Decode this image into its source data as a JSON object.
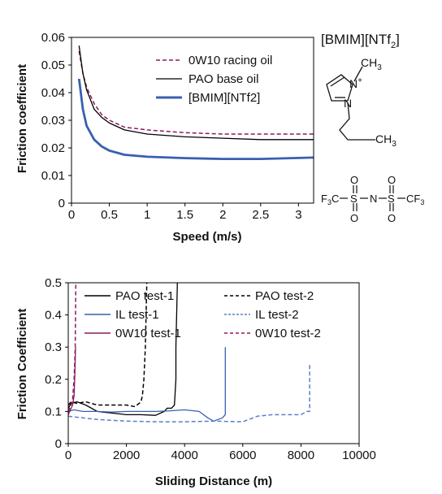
{
  "colors": {
    "axis": "#000000",
    "black": "#000000",
    "blue": "#3a5fb0",
    "purple": "#8b1a5e",
    "light_blue": "#5a7fc8"
  },
  "chart_data": [
    {
      "type": "line",
      "title": "",
      "xlabel": "Speed (m/s)",
      "ylabel": "Friction coefficient",
      "xlim": [
        0,
        3.2
      ],
      "ylim": [
        0,
        0.06
      ],
      "xticks": [
        "0",
        "0.5",
        "1",
        "1.5",
        "2",
        "2.5",
        "3"
      ],
      "yticks": [
        "0",
        "0.01",
        "0.02",
        "0.03",
        "0.04",
        "0.05",
        "0.06"
      ],
      "grid": false,
      "legend": "top-right",
      "series": [
        {
          "name": "0W10 racing oil",
          "style": "dashed",
          "color": "#8b1a5e",
          "x": [
            0.1,
            0.15,
            0.2,
            0.3,
            0.4,
            0.5,
            0.7,
            1.0,
            1.5,
            2.0,
            2.5,
            3.2
          ],
          "y": [
            0.055,
            0.047,
            0.042,
            0.036,
            0.032,
            0.03,
            0.0275,
            0.0265,
            0.0255,
            0.025,
            0.025,
            0.025
          ]
        },
        {
          "name": "PAO base oil",
          "style": "solid",
          "color": "#000000",
          "x": [
            0.1,
            0.15,
            0.2,
            0.3,
            0.4,
            0.5,
            0.7,
            1.0,
            1.5,
            2.0,
            2.5,
            3.2
          ],
          "y": [
            0.057,
            0.047,
            0.041,
            0.034,
            0.031,
            0.029,
            0.0265,
            0.025,
            0.024,
            0.0235,
            0.023,
            0.023
          ]
        },
        {
          "name": "[BMIM][NTf2]",
          "style": "solid-thick",
          "color": "#3a5fb0",
          "x": [
            0.1,
            0.15,
            0.2,
            0.3,
            0.4,
            0.5,
            0.7,
            1.0,
            1.5,
            2.0,
            2.5,
            3.2
          ],
          "y": [
            0.045,
            0.034,
            0.028,
            0.023,
            0.0205,
            0.019,
            0.0175,
            0.0168,
            0.0163,
            0.016,
            0.016,
            0.0165
          ]
        }
      ]
    },
    {
      "type": "line",
      "title": "",
      "xlabel": "Sliding Distance (m)",
      "ylabel": "Friction Coefficient",
      "xlim": [
        0,
        10000
      ],
      "ylim": [
        0,
        0.5
      ],
      "xticks": [
        "0",
        "2000",
        "4000",
        "6000",
        "8000",
        "10000"
      ],
      "yticks": [
        "0",
        "0.1",
        "0.2",
        "0.3",
        "0.4",
        "0.5"
      ],
      "grid": false,
      "legend": "top",
      "series": [
        {
          "name": "PAO test-1",
          "style": "solid",
          "color": "#000000",
          "x": [
            0,
            100,
            300,
            600,
            1000,
            1500,
            2000,
            2500,
            3000,
            3300,
            3400,
            3550,
            3650,
            3700,
            3700,
            3750
          ],
          "y": [
            0.11,
            0.125,
            0.13,
            0.12,
            0.1,
            0.095,
            0.09,
            0.09,
            0.088,
            0.1,
            0.11,
            0.11,
            0.12,
            0.2,
            0.3,
            0.5
          ]
        },
        {
          "name": "PAO test-2",
          "style": "dashed",
          "color": "#000000",
          "x": [
            0,
            100,
            300,
            600,
            1000,
            1500,
            2000,
            2300,
            2500,
            2550,
            2600,
            2650,
            2700
          ],
          "y": [
            0.12,
            0.13,
            0.125,
            0.13,
            0.12,
            0.12,
            0.12,
            0.115,
            0.13,
            0.15,
            0.2,
            0.3,
            0.5
          ]
        },
        {
          "name": "IL test-1",
          "style": "solid",
          "color": "#3a5fb0",
          "x": [
            0,
            200,
            500,
            1000,
            1500,
            2000,
            2500,
            3000,
            3500,
            4000,
            4500,
            4800,
            5000,
            5300,
            5400,
            5400
          ],
          "y": [
            0.1,
            0.105,
            0.1,
            0.1,
            0.098,
            0.1,
            0.1,
            0.1,
            0.102,
            0.105,
            0.1,
            0.08,
            0.07,
            0.08,
            0.09,
            0.3
          ]
        },
        {
          "name": "IL test-2",
          "style": "dashed",
          "color": "#5a7fc8",
          "x": [
            0,
            500,
            1000,
            2000,
            3000,
            4000,
            5000,
            6000,
            6500,
            7000,
            7500,
            8000,
            8200,
            8300,
            8300
          ],
          "y": [
            0.085,
            0.08,
            0.075,
            0.07,
            0.068,
            0.068,
            0.07,
            0.068,
            0.085,
            0.09,
            0.09,
            0.09,
            0.1,
            0.1,
            0.25
          ]
        },
        {
          "name": "0W10 test-1",
          "style": "solid",
          "color": "#8b1a5e",
          "x": [
            0,
            50,
            100,
            150,
            200,
            230,
            250
          ],
          "y": [
            0.09,
            0.1,
            0.11,
            0.12,
            0.15,
            0.22,
            0.3
          ]
        },
        {
          "name": "0W10 test-2",
          "style": "dashed",
          "color": "#8b1a5e",
          "x": [
            0,
            50,
            100,
            150,
            200,
            240,
            260
          ],
          "y": [
            0.1,
            0.11,
            0.12,
            0.14,
            0.2,
            0.3,
            0.5
          ]
        }
      ]
    }
  ],
  "structure": {
    "title": "[BMIM][NTf",
    "title_sub": "2",
    "title_end": "]",
    "cation": {
      "methyl": "CH",
      "methyl_sub": "3",
      "nplus": "N",
      "plus": "+",
      "n": "N",
      "terminal": "CH",
      "terminal_sub": "3"
    },
    "anion": {
      "left": "F",
      "left_sub": "3",
      "left_c": "C",
      "s": "S",
      "n": "N",
      "o": "O",
      "right": "CF",
      "right_sub": "3"
    }
  }
}
